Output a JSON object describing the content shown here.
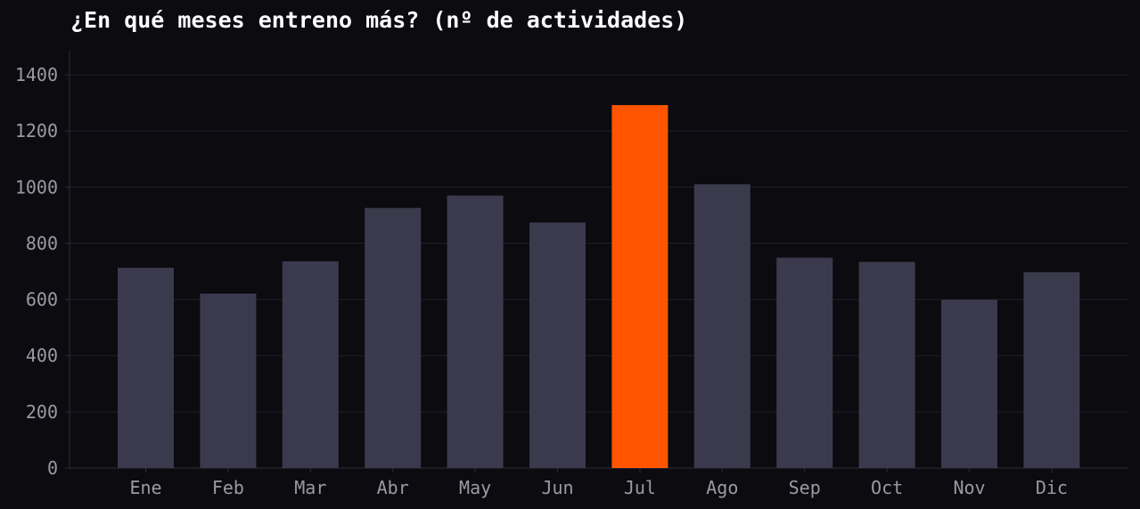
{
  "chart_data": {
    "type": "bar",
    "title": "¿En qué meses entreno más? (nº de actividades)",
    "xlabel": "",
    "ylabel": "",
    "categories": [
      "Ene",
      "Feb",
      "Mar",
      "Abr",
      "May",
      "Jun",
      "Jul",
      "Ago",
      "Sep",
      "Oct",
      "Nov",
      "Dic"
    ],
    "values": [
      713,
      621,
      736,
      926,
      970,
      874,
      1292,
      1010,
      749,
      734,
      599,
      697
    ],
    "highlight_category": "Jul",
    "ylim": [
      0,
      1480
    ],
    "yticks": [
      0,
      200,
      400,
      600,
      800,
      1000,
      1200,
      1400
    ],
    "grid": "horizontal",
    "legend": "none",
    "colors": {
      "background": "#0b0b10",
      "bar": "#3b3a4d",
      "highlight": "#ff5500",
      "grid": "#1f1f29",
      "axis": "#2c2c38",
      "tick_text": "#9a9aa6",
      "title": "#ffffff"
    }
  }
}
